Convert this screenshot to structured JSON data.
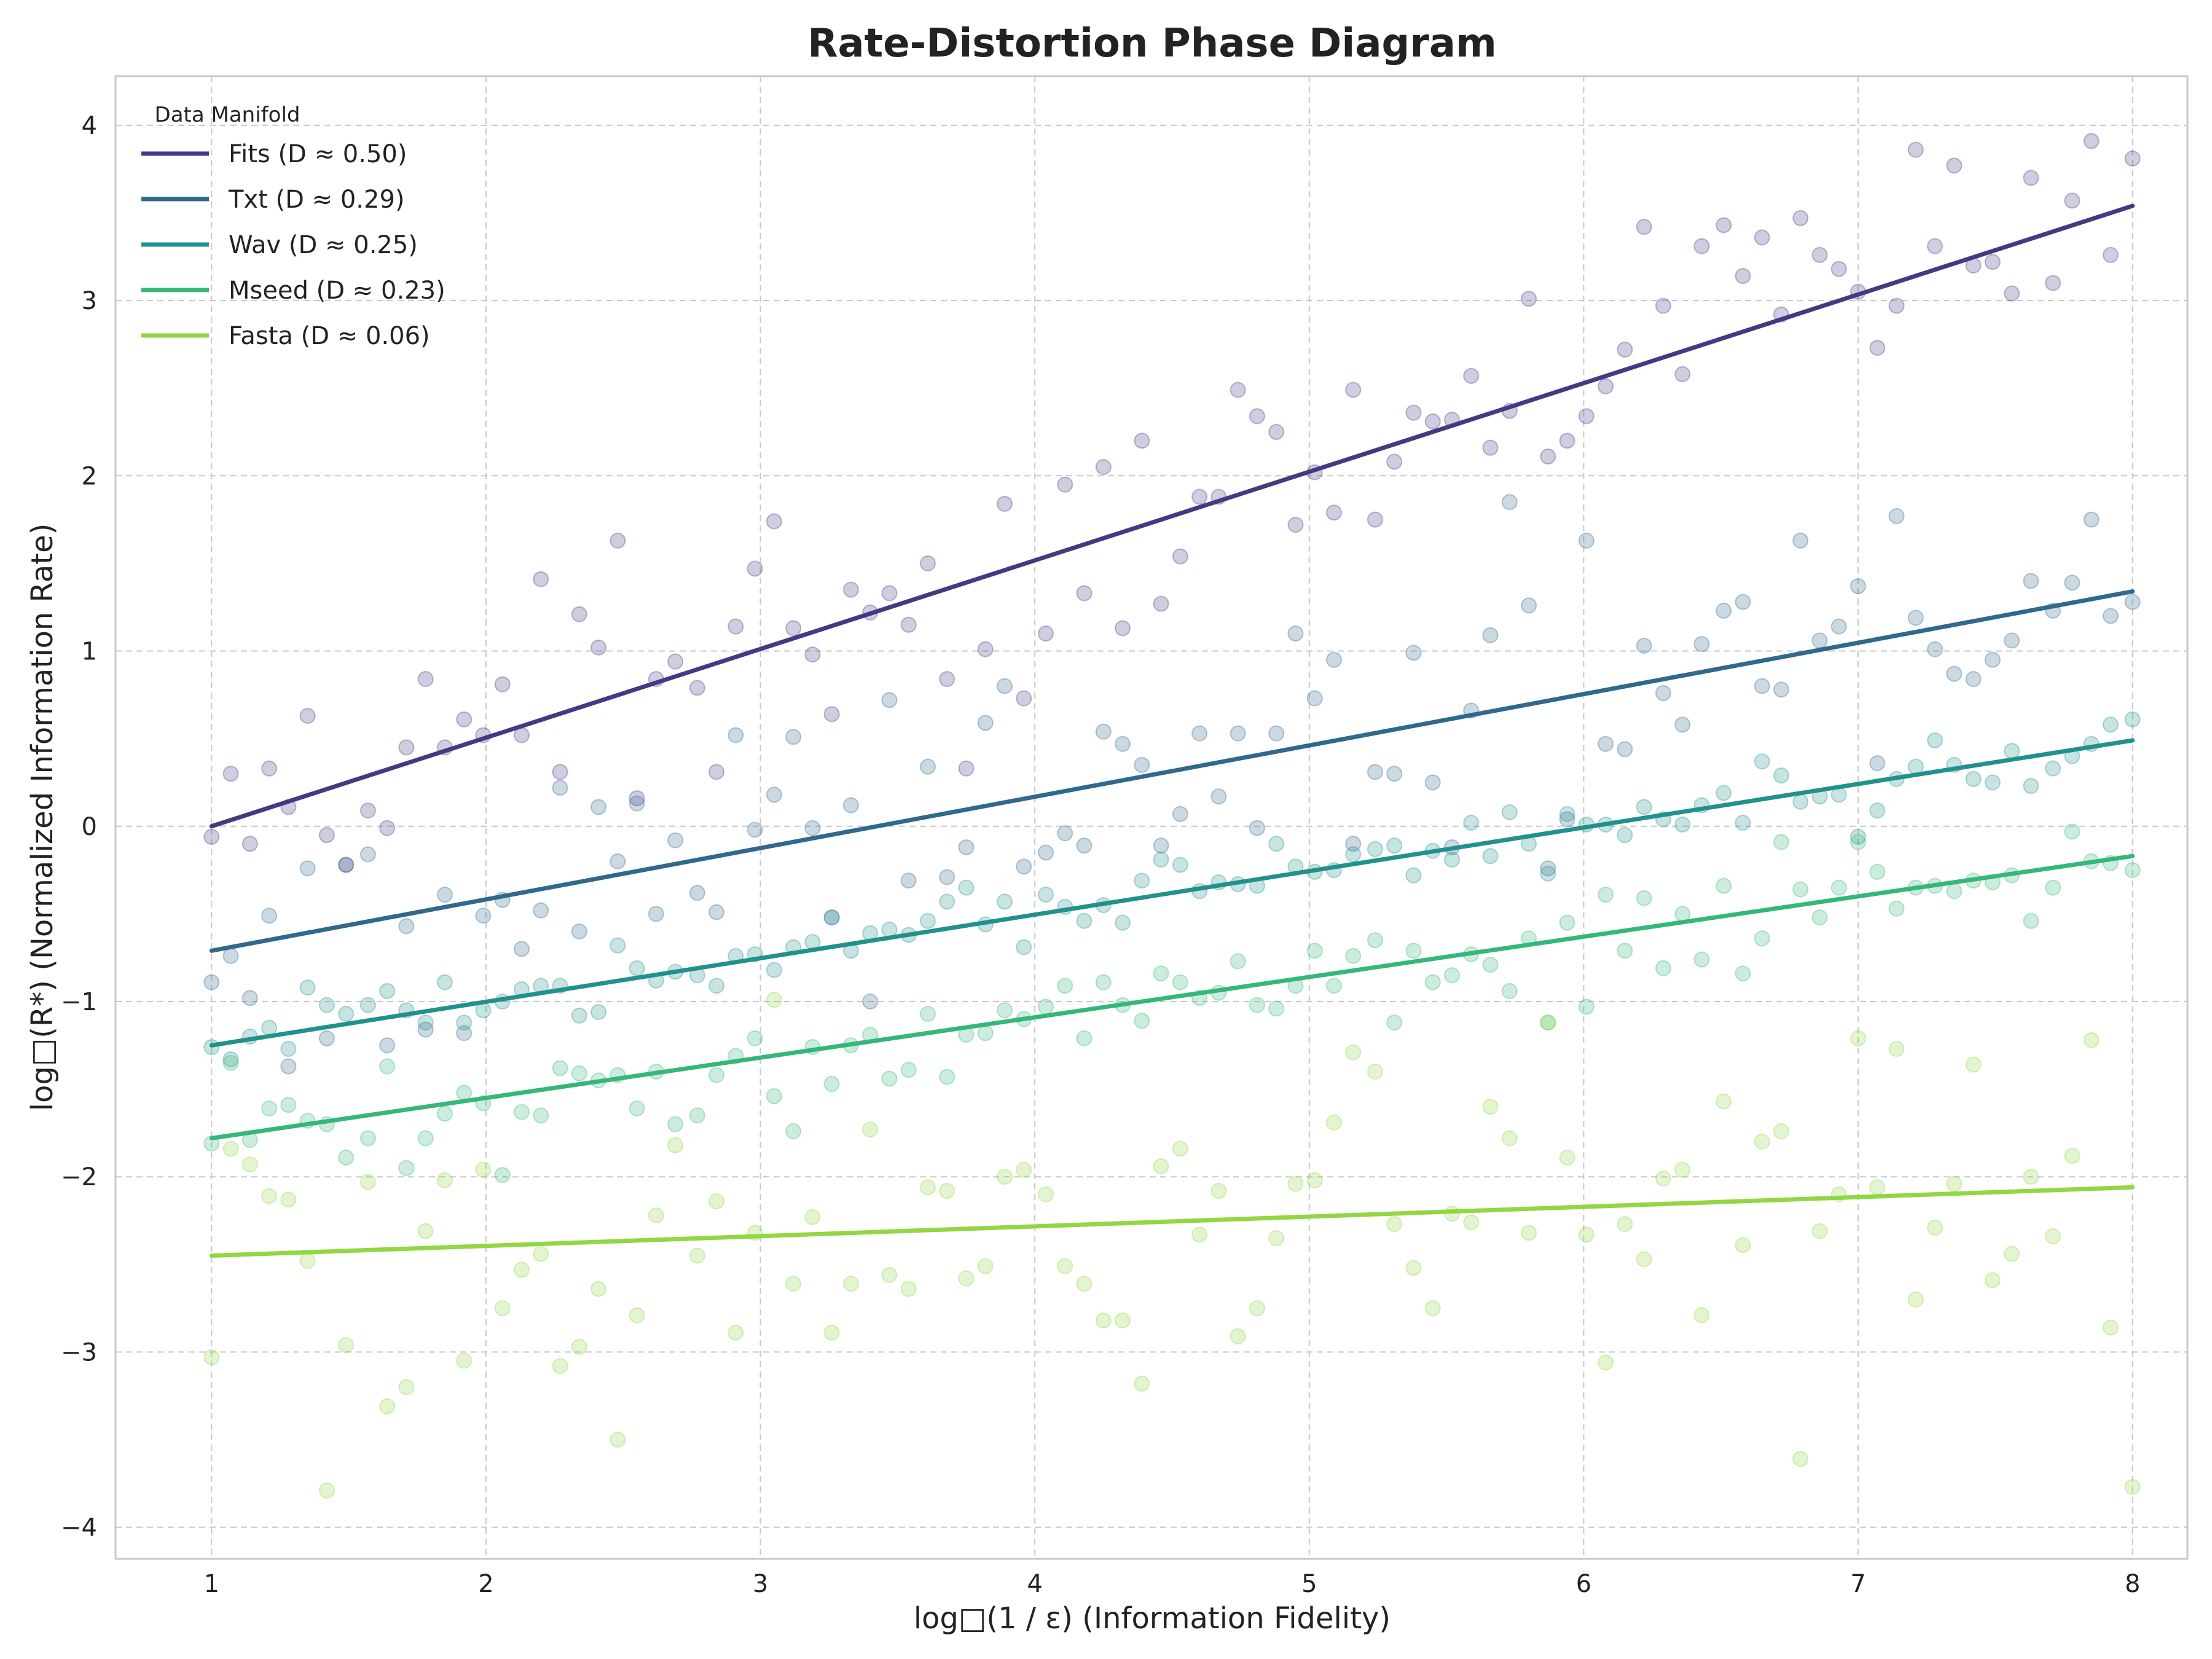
{
  "chart_data": {
    "type": "scatter",
    "title": "Rate-Distortion Phase Diagram",
    "xlabel": "log□(1 / ε)  (Information Fidelity)",
    "ylabel": "log□(R*)  (Normalized Information Rate)",
    "xlim": [
      0.65,
      8.2
    ],
    "ylim": [
      -4.18,
      4.28
    ],
    "x_ticks": [
      1,
      2,
      3,
      4,
      5,
      6,
      7,
      8
    ],
    "y_ticks": [
      -4,
      -3,
      -2,
      -1,
      0,
      1,
      2,
      3,
      4
    ],
    "grid": true,
    "legend_title": "Data Manifold",
    "legend_position": "top-left",
    "x": [
      1.0,
      1.07,
      1.14,
      1.21,
      1.28,
      1.35,
      1.42,
      1.49,
      1.57,
      1.64,
      1.71,
      1.78,
      1.85,
      1.92,
      1.99,
      2.06,
      2.13,
      2.2,
      2.27,
      2.34,
      2.41,
      2.48,
      2.55,
      2.62,
      2.69,
      2.77,
      2.84,
      2.91,
      2.98,
      3.05,
      3.12,
      3.19,
      3.26,
      3.33,
      3.4,
      3.47,
      3.54,
      3.61,
      3.68,
      3.75,
      3.82,
      3.89,
      3.96,
      4.04,
      4.11,
      4.18,
      4.25,
      4.32,
      4.39,
      4.46,
      4.53,
      4.6,
      4.67,
      4.74,
      4.81,
      4.88,
      4.95,
      5.02,
      5.09,
      5.16,
      5.24,
      5.31,
      5.38,
      5.45,
      5.52,
      5.59,
      5.66,
      5.73,
      5.8,
      5.87,
      5.94,
      6.01,
      6.08,
      6.15,
      6.22,
      6.29,
      6.36,
      6.43,
      6.51,
      6.58,
      6.65,
      6.72,
      6.79,
      6.86,
      6.93,
      7.0,
      7.07,
      7.14,
      7.21,
      7.28,
      7.35,
      7.42,
      7.49,
      7.56,
      7.63,
      7.71,
      7.78,
      7.85,
      7.92,
      8.0
    ],
    "series": [
      {
        "name": "Fits (D ≈ 0.50)",
        "color": "#443983",
        "fit": [
          [
            1,
            0.0
          ],
          [
            8,
            3.54
          ]
        ],
        "y": [
          -0.06,
          0.3,
          -0.1,
          0.33,
          0.11,
          0.63,
          -0.05,
          -0.22,
          0.09,
          -0.01,
          0.45,
          0.84,
          0.45,
          0.61,
          0.52,
          0.81,
          0.52,
          1.41,
          0.31,
          1.21,
          1.02,
          1.63,
          0.16,
          0.84,
          0.94,
          0.79,
          0.31,
          1.14,
          1.47,
          1.74,
          1.13,
          0.98,
          0.64,
          1.35,
          1.22,
          1.33,
          1.15,
          1.5,
          0.84,
          0.33,
          1.01,
          1.84,
          0.73,
          1.1,
          1.95,
          1.33,
          2.05,
          1.13,
          2.2,
          1.27,
          1.54,
          1.88,
          1.88,
          2.49,
          2.34,
          2.25,
          1.72,
          2.02,
          1.79,
          2.49,
          1.75,
          2.08,
          2.36,
          2.31,
          2.32,
          2.57,
          2.16,
          2.37,
          3.01,
          2.11,
          2.2,
          2.34,
          2.51,
          2.72,
          3.42,
          2.97,
          2.58,
          3.31,
          3.43,
          3.14,
          3.36,
          2.92,
          3.47,
          3.26,
          3.18,
          3.05,
          2.73,
          2.97,
          3.86,
          3.31,
          3.77,
          3.2,
          3.22,
          3.04,
          3.7,
          3.1,
          3.57,
          3.91,
          3.26,
          3.81
        ]
      },
      {
        "name": "Txt (D ≈ 0.29)",
        "color": "#31688e",
        "fit": [
          [
            1,
            -0.71
          ],
          [
            8,
            1.34
          ]
        ],
        "y": [
          -0.89,
          -0.74,
          -0.98,
          -0.51,
          -1.37,
          -0.24,
          -1.21,
          -0.22,
          -0.16,
          -1.25,
          -0.57,
          -1.16,
          -0.39,
          -1.18,
          -0.51,
          -0.42,
          -0.7,
          -0.48,
          0.22,
          -0.6,
          0.11,
          -0.2,
          0.13,
          -0.5,
          -0.08,
          -0.38,
          -0.49,
          0.52,
          -0.02,
          0.18,
          0.51,
          -0.01,
          -0.52,
          0.12,
          -1.0,
          0.72,
          -0.31,
          0.34,
          -0.29,
          -0.12,
          0.59,
          0.8,
          -0.23,
          -0.15,
          -0.04,
          -0.11,
          0.54,
          0.47,
          0.35,
          -0.11,
          0.07,
          0.53,
          0.17,
          0.53,
          -0.01,
          0.53,
          1.1,
          0.73,
          0.95,
          -0.1,
          0.31,
          0.3,
          0.99,
          0.25,
          -0.12,
          0.66,
          1.09,
          1.85,
          1.26,
          -0.24,
          0.04,
          1.63,
          0.47,
          0.44,
          1.03,
          0.76,
          0.58,
          1.04,
          1.23,
          1.28,
          0.8,
          0.78,
          1.63,
          1.06,
          1.14,
          1.37,
          0.36,
          1.77,
          1.19,
          1.01,
          0.87,
          0.84,
          0.95,
          1.06,
          1.4,
          1.23,
          1.39,
          1.75,
          1.2,
          1.28
        ]
      },
      {
        "name": "Wav (D ≈ 0.25)",
        "color": "#21918c",
        "fit": [
          [
            1,
            -1.25
          ],
          [
            8,
            0.49
          ]
        ],
        "y": [
          -1.26,
          -1.33,
          -1.2,
          -1.15,
          -1.27,
          -0.92,
          -1.02,
          -1.07,
          -1.02,
          -0.94,
          -1.05,
          -1.12,
          -0.89,
          -1.12,
          -1.05,
          -1.0,
          -0.93,
          -0.91,
          -0.91,
          -1.08,
          -1.06,
          -0.68,
          -0.81,
          -0.88,
          -0.83,
          -0.85,
          -0.91,
          -0.74,
          -0.73,
          -0.82,
          -0.69,
          -0.66,
          -0.52,
          -0.71,
          -0.61,
          -0.59,
          -0.62,
          -0.54,
          -0.43,
          -0.35,
          -0.56,
          -0.43,
          -0.69,
          -0.39,
          -0.46,
          -0.54,
          -0.45,
          -0.55,
          -0.31,
          -0.19,
          -0.22,
          -0.37,
          -0.32,
          -0.33,
          -0.34,
          -0.1,
          -0.23,
          -0.26,
          -0.25,
          -0.16,
          -0.13,
          -0.11,
          -0.28,
          -0.14,
          -0.19,
          0.02,
          -0.17,
          0.08,
          -0.1,
          -0.27,
          0.07,
          0.01,
          0.01,
          -0.05,
          0.11,
          0.04,
          0.01,
          0.12,
          0.19,
          0.02,
          0.37,
          0.29,
          0.14,
          0.17,
          0.18,
          -0.06,
          0.09,
          0.27,
          0.34,
          0.49,
          0.35,
          0.27,
          0.25,
          0.43,
          0.23,
          0.33,
          0.4,
          0.47,
          0.58,
          0.61
        ]
      },
      {
        "name": "Mseed (D ≈ 0.23)",
        "color": "#35b779",
        "fit": [
          [
            1,
            -1.78
          ],
          [
            8,
            -0.17
          ]
        ],
        "y": [
          -1.81,
          -1.35,
          -1.79,
          -1.61,
          -1.59,
          -1.68,
          -1.7,
          -1.89,
          -1.78,
          -1.37,
          -1.95,
          -1.78,
          -1.64,
          -1.52,
          -1.58,
          -1.99,
          -1.63,
          -1.65,
          -1.38,
          -1.41,
          -1.45,
          -1.42,
          -1.61,
          -1.4,
          -1.7,
          -1.65,
          -1.42,
          -1.31,
          -1.21,
          -1.54,
          -1.74,
          -1.26,
          -1.47,
          -1.25,
          -1.19,
          -1.44,
          -1.39,
          -1.07,
          -1.43,
          -1.19,
          -1.18,
          -1.05,
          -1.1,
          -1.03,
          -0.91,
          -1.21,
          -0.89,
          -1.02,
          -1.11,
          -0.84,
          -0.89,
          -0.98,
          -0.95,
          -0.77,
          -1.02,
          -1.04,
          -0.91,
          -0.71,
          -0.91,
          -0.74,
          -0.65,
          -1.12,
          -0.71,
          -0.89,
          -0.85,
          -0.73,
          -0.79,
          -0.94,
          -0.64,
          -1.12,
          -0.55,
          -1.03,
          -0.39,
          -0.71,
          -0.41,
          -0.81,
          -0.5,
          -0.76,
          -0.34,
          -0.84,
          -0.64,
          -0.09,
          -0.36,
          -0.52,
          -0.35,
          -0.09,
          -0.26,
          -0.47,
          -0.35,
          -0.34,
          -0.37,
          -0.31,
          -0.32,
          -0.28,
          -0.54,
          -0.35,
          -0.03,
          -0.2,
          -0.21,
          -0.25
        ]
      },
      {
        "name": "Fasta (D ≈ 0.06)",
        "color": "#90d743",
        "fit": [
          [
            1,
            -2.45
          ],
          [
            8,
            -2.06
          ]
        ],
        "y": [
          -3.03,
          -1.84,
          -1.93,
          -2.11,
          -2.13,
          -2.48,
          -3.79,
          -2.96,
          -2.03,
          -3.31,
          -3.2,
          -2.31,
          -2.02,
          -3.05,
          -1.96,
          -2.75,
          -2.53,
          -2.44,
          -3.08,
          -2.97,
          -2.64,
          -3.5,
          -2.79,
          -2.22,
          -1.82,
          -2.45,
          -2.14,
          -2.89,
          -2.32,
          -0.99,
          -2.61,
          -2.23,
          -2.89,
          -2.61,
          -1.73,
          -2.56,
          -2.64,
          -2.06,
          -2.08,
          -2.58,
          -2.51,
          -2.0,
          -1.96,
          -2.1,
          -2.51,
          -2.61,
          -2.82,
          -2.82,
          -3.18,
          -1.94,
          -1.84,
          -2.33,
          -2.08,
          -2.91,
          -2.75,
          -2.35,
          -2.04,
          -2.02,
          -1.69,
          -1.29,
          -1.4,
          -2.27,
          -2.52,
          -2.75,
          -2.21,
          -2.26,
          -1.6,
          -1.78,
          -2.32,
          -1.12,
          -1.89,
          -2.33,
          -3.06,
          -2.27,
          -2.47,
          -2.01,
          -1.96,
          -2.79,
          -1.57,
          -2.39,
          -1.8,
          -1.74,
          -3.61,
          -2.31,
          -2.1,
          -1.21,
          -2.06,
          -1.27,
          -2.7,
          -2.29,
          -2.04,
          -1.36,
          -2.59,
          -2.44,
          -2.0,
          -2.34,
          -1.88,
          -1.22,
          -2.86,
          -3.77
        ]
      }
    ]
  }
}
